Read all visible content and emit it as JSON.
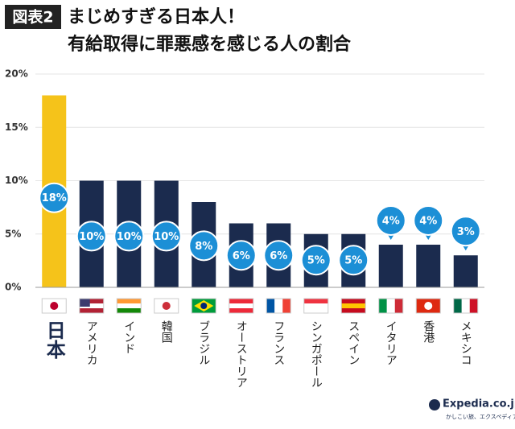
{
  "chart_data": {
    "type": "bar",
    "badge": "図表2",
    "title": "まじめすぎる日本人！",
    "subtitle": "有給取得に罪悪感を感じる人の割合",
    "categories": [
      "日本",
      "アメリカ",
      "インド",
      "韓国",
      "ブラジル",
      "オーストリア",
      "フランス",
      "シンガポール",
      "スペイン",
      "イタリア",
      "香港",
      "メキシコ"
    ],
    "values": [
      18,
      10,
      10,
      10,
      8,
      6,
      6,
      5,
      5,
      4,
      4,
      3
    ],
    "value_labels": [
      "18%",
      "10%",
      "10%",
      "10%",
      "8%",
      "6%",
      "6%",
      "5%",
      "5%",
      "4%",
      "4%",
      "3%"
    ],
    "colors": [
      "#f5c31a",
      "#1b2b4e",
      "#1b2b4e",
      "#1b2b4e",
      "#1b2b4e",
      "#1b2b4e",
      "#1b2b4e",
      "#1b2b4e",
      "#1b2b4e",
      "#1b2b4e",
      "#1b2b4e",
      "#1b2b4e"
    ],
    "label_color": "#1c8fd6",
    "ylim": [
      0,
      20
    ],
    "yticks": [
      {
        "value": 0,
        "label": "0%"
      },
      {
        "value": 5,
        "label": "5%"
      },
      {
        "value": 10,
        "label": "10%"
      },
      {
        "value": 15,
        "label": "15%"
      },
      {
        "value": 20,
        "label": "20%"
      }
    ],
    "grid": true,
    "brand": "Expedia.co.jp",
    "tagline": "かしこい旅、エクスペディア"
  }
}
